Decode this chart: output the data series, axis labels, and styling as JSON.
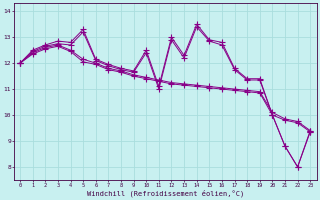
{
  "title": "",
  "xlabel": "Windchill (Refroidissement éolien,°C)",
  "ylabel": "",
  "bg_color": "#c8f0f0",
  "grid_color": "#aadddd",
  "line_color": "#880088",
  "xlim": [
    -0.5,
    23.5
  ],
  "ylim": [
    7.5,
    14.3
  ],
  "xticks": [
    0,
    1,
    2,
    3,
    4,
    5,
    6,
    7,
    8,
    9,
    10,
    11,
    12,
    13,
    14,
    15,
    16,
    17,
    18,
    19,
    20,
    21,
    22,
    23
  ],
  "yticks": [
    8,
    9,
    10,
    11,
    12,
    13,
    14
  ],
  "series": [
    [
      12.0,
      12.5,
      12.7,
      12.85,
      12.8,
      13.3,
      12.15,
      11.95,
      11.8,
      11.7,
      12.5,
      11.1,
      13.0,
      12.3,
      13.5,
      12.9,
      12.8,
      11.8,
      11.4,
      11.4,
      10.0,
      8.8,
      8.0,
      9.4
    ],
    [
      12.0,
      12.45,
      12.65,
      12.75,
      12.7,
      13.2,
      12.1,
      11.9,
      11.75,
      11.65,
      12.4,
      11.0,
      12.9,
      12.2,
      13.4,
      12.85,
      12.7,
      11.75,
      11.35,
      11.35,
      10.0,
      8.8,
      8.0,
      9.35
    ],
    [
      12.0,
      12.4,
      12.6,
      12.7,
      12.5,
      12.15,
      12.0,
      11.8,
      11.7,
      11.55,
      11.45,
      11.35,
      11.25,
      11.2,
      11.15,
      11.1,
      11.05,
      11.0,
      10.95,
      10.9,
      10.1,
      9.85,
      9.75,
      9.4
    ],
    [
      12.0,
      12.35,
      12.55,
      12.65,
      12.45,
      12.05,
      11.95,
      11.75,
      11.65,
      11.5,
      11.4,
      11.3,
      11.2,
      11.15,
      11.1,
      11.05,
      11.0,
      10.95,
      10.9,
      10.85,
      10.0,
      9.8,
      9.7,
      9.35
    ]
  ],
  "marker": "+",
  "markersize": 4.0,
  "linewidth": 0.7
}
